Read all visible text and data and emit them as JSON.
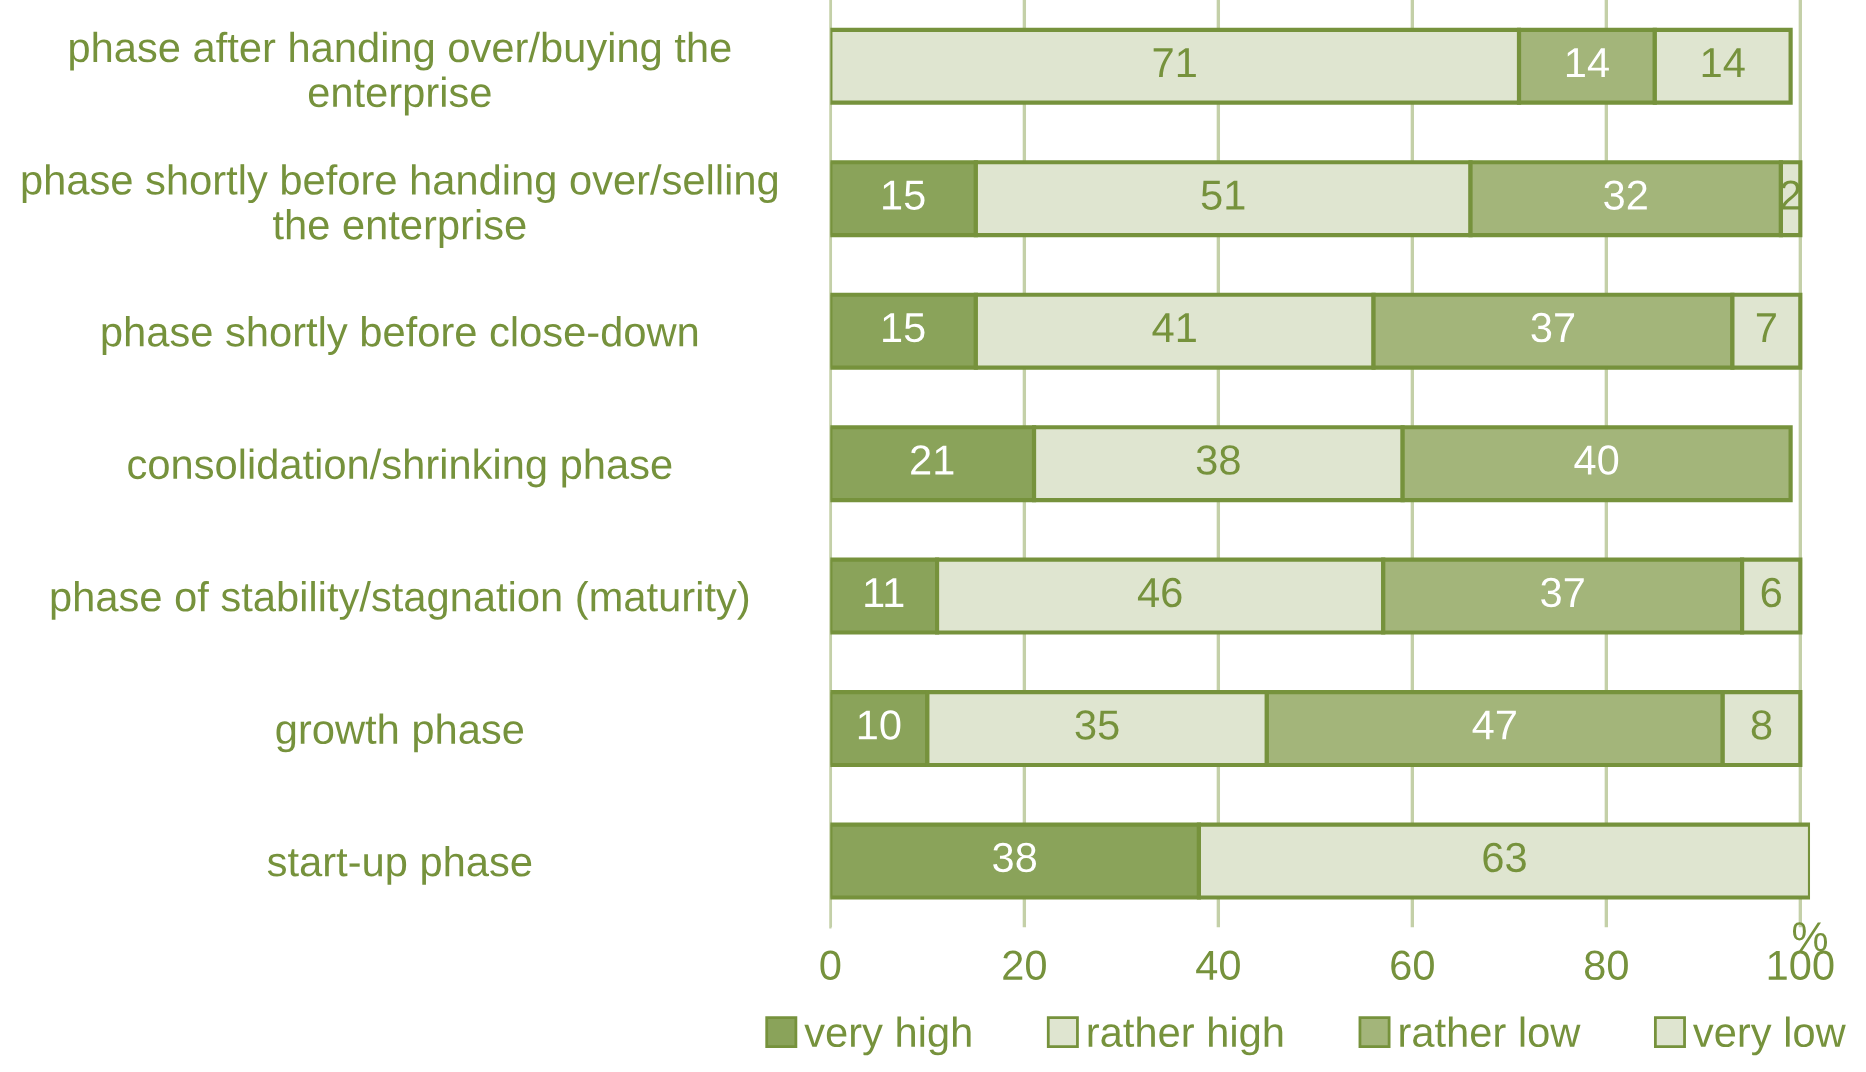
{
  "chart_data": {
    "type": "bar",
    "orientation": "horizontal",
    "stacked": true,
    "data_labels": true,
    "categories": [
      "phase after handing over/buying the\nenterprise",
      "phase shortly before handing over/selling\nthe enterprise",
      "phase shortly before close-down",
      "consolidation/shrinking phase",
      "phase of stability/stagnation (maturity)",
      "growth phase",
      "start-up phase"
    ],
    "series": [
      {
        "name": "very high",
        "color": "#8aa35a",
        "values": [
          null,
          15,
          15,
          21,
          11,
          10,
          38
        ]
      },
      {
        "name": "rather high",
        "color": "#dfe5d0",
        "values": [
          71,
          51,
          41,
          38,
          46,
          35,
          63
        ]
      },
      {
        "name": "rather low",
        "color": "#a3b57a",
        "values": [
          14,
          32,
          37,
          40,
          37,
          47,
          null
        ]
      },
      {
        "name": "very low",
        "color": "#dfe5d0",
        "values": [
          14,
          2,
          7,
          null,
          6,
          8,
          null
        ]
      }
    ],
    "xlim": [
      0,
      101
    ],
    "xticks": [
      0,
      20,
      40,
      60,
      80,
      100
    ],
    "xlabel": "%",
    "grid": "x",
    "legend": "bottom"
  }
}
